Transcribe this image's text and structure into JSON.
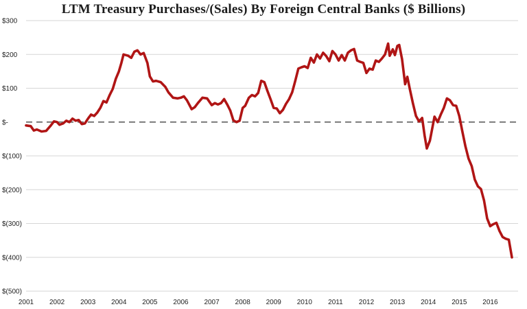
{
  "chart_data": {
    "type": "line",
    "title": "LTM Treasury Purchases/(Sales) By Foreign Central Banks ($ Billions)",
    "xlabel": "",
    "ylabel": "",
    "x_range": [
      2001,
      2016.9
    ],
    "ylim": [
      -500,
      300
    ],
    "y_ticks": [
      {
        "value": 300,
        "label": "$300"
      },
      {
        "value": 200,
        "label": "$200"
      },
      {
        "value": 100,
        "label": "$100"
      },
      {
        "value": 0,
        "label": "$-"
      },
      {
        "value": -100,
        "label": "$(100)"
      },
      {
        "value": -200,
        "label": "$(200)"
      },
      {
        "value": -300,
        "label": "$(300)"
      },
      {
        "value": -400,
        "label": "$(400)"
      },
      {
        "value": -500,
        "label": "$(500)"
      }
    ],
    "x_ticks": [
      {
        "value": 2001,
        "label": "2001"
      },
      {
        "value": 2002,
        "label": "2002"
      },
      {
        "value": 2003,
        "label": "2003"
      },
      {
        "value": 2004,
        "label": "2004"
      },
      {
        "value": 2005,
        "label": "2005"
      },
      {
        "value": 2006,
        "label": "2006"
      },
      {
        "value": 2007,
        "label": "2007"
      },
      {
        "value": 2008,
        "label": "2008"
      },
      {
        "value": 2009,
        "label": "2009"
      },
      {
        "value": 2010,
        "label": "2010"
      },
      {
        "value": 2011,
        "label": "2011"
      },
      {
        "value": 2012,
        "label": "2012"
      },
      {
        "value": 2013,
        "label": "2013"
      },
      {
        "value": 2014,
        "label": "2014"
      },
      {
        "value": 2015,
        "label": "2015"
      },
      {
        "value": 2016,
        "label": "2016"
      }
    ],
    "grid": true,
    "zero_line": "dashed",
    "series": [
      {
        "color": "#b01515",
        "points": [
          [
            2001.0,
            -10
          ],
          [
            2001.15,
            -12
          ],
          [
            2001.25,
            -25
          ],
          [
            2001.35,
            -22
          ],
          [
            2001.5,
            -28
          ],
          [
            2001.65,
            -26
          ],
          [
            2001.8,
            -10
          ],
          [
            2001.9,
            2
          ],
          [
            2002.0,
            0
          ],
          [
            2002.08,
            -8
          ],
          [
            2002.2,
            -4
          ],
          [
            2002.3,
            4
          ],
          [
            2002.4,
            0
          ],
          [
            2002.5,
            10
          ],
          [
            2002.6,
            4
          ],
          [
            2002.7,
            6
          ],
          [
            2002.8,
            -6
          ],
          [
            2002.9,
            -4
          ],
          [
            2003.0,
            10
          ],
          [
            2003.1,
            22
          ],
          [
            2003.2,
            18
          ],
          [
            2003.3,
            28
          ],
          [
            2003.4,
            42
          ],
          [
            2003.5,
            62
          ],
          [
            2003.6,
            58
          ],
          [
            2003.7,
            80
          ],
          [
            2003.8,
            98
          ],
          [
            2003.9,
            128
          ],
          [
            2004.0,
            150
          ],
          [
            2004.08,
            175
          ],
          [
            2004.15,
            200
          ],
          [
            2004.3,
            196
          ],
          [
            2004.4,
            190
          ],
          [
            2004.5,
            208
          ],
          [
            2004.6,
            212
          ],
          [
            2004.7,
            200
          ],
          [
            2004.8,
            204
          ],
          [
            2004.92,
            175
          ],
          [
            2005.0,
            135
          ],
          [
            2005.1,
            120
          ],
          [
            2005.2,
            122
          ],
          [
            2005.35,
            118
          ],
          [
            2005.5,
            104
          ],
          [
            2005.6,
            88
          ],
          [
            2005.75,
            72
          ],
          [
            2005.9,
            70
          ],
          [
            2006.0,
            72
          ],
          [
            2006.1,
            76
          ],
          [
            2006.2,
            64
          ],
          [
            2006.35,
            38
          ],
          [
            2006.45,
            44
          ],
          [
            2006.55,
            56
          ],
          [
            2006.7,
            72
          ],
          [
            2006.85,
            70
          ],
          [
            2007.0,
            50
          ],
          [
            2007.1,
            56
          ],
          [
            2007.2,
            52
          ],
          [
            2007.3,
            56
          ],
          [
            2007.4,
            68
          ],
          [
            2007.5,
            52
          ],
          [
            2007.6,
            34
          ],
          [
            2007.7,
            5
          ],
          [
            2007.8,
            0
          ],
          [
            2007.9,
            4
          ],
          [
            2008.0,
            42
          ],
          [
            2008.08,
            48
          ],
          [
            2008.2,
            72
          ],
          [
            2008.3,
            80
          ],
          [
            2008.4,
            76
          ],
          [
            2008.5,
            86
          ],
          [
            2008.6,
            122
          ],
          [
            2008.7,
            118
          ],
          [
            2008.8,
            92
          ],
          [
            2008.9,
            68
          ],
          [
            2009.0,
            42
          ],
          [
            2009.1,
            40
          ],
          [
            2009.2,
            26
          ],
          [
            2009.3,
            36
          ],
          [
            2009.4,
            54
          ],
          [
            2009.5,
            68
          ],
          [
            2009.6,
            88
          ],
          [
            2009.7,
            122
          ],
          [
            2009.8,
            158
          ],
          [
            2009.9,
            162
          ],
          [
            2010.0,
            165
          ],
          [
            2010.1,
            160
          ],
          [
            2010.2,
            190
          ],
          [
            2010.3,
            176
          ],
          [
            2010.4,
            200
          ],
          [
            2010.5,
            188
          ],
          [
            2010.6,
            205
          ],
          [
            2010.7,
            195
          ],
          [
            2010.8,
            180
          ],
          [
            2010.9,
            210
          ],
          [
            2011.0,
            200
          ],
          [
            2011.1,
            182
          ],
          [
            2011.2,
            198
          ],
          [
            2011.3,
            182
          ],
          [
            2011.4,
            205
          ],
          [
            2011.5,
            212
          ],
          [
            2011.6,
            216
          ],
          [
            2011.7,
            182
          ],
          [
            2011.8,
            178
          ],
          [
            2011.9,
            175
          ],
          [
            2012.0,
            145
          ],
          [
            2012.1,
            158
          ],
          [
            2012.2,
            155
          ],
          [
            2012.3,
            182
          ],
          [
            2012.4,
            178
          ],
          [
            2012.5,
            188
          ],
          [
            2012.6,
            200
          ],
          [
            2012.7,
            232
          ],
          [
            2012.75,
            196
          ],
          [
            2012.85,
            215
          ],
          [
            2012.92,
            198
          ],
          [
            2013.0,
            225
          ],
          [
            2013.06,
            228
          ],
          [
            2013.15,
            186
          ],
          [
            2013.25,
            112
          ],
          [
            2013.32,
            134
          ],
          [
            2013.4,
            98
          ],
          [
            2013.5,
            56
          ],
          [
            2013.6,
            18
          ],
          [
            2013.7,
            2
          ],
          [
            2013.8,
            12
          ],
          [
            2013.88,
            -40
          ],
          [
            2013.95,
            -78
          ],
          [
            2014.05,
            -55
          ],
          [
            2014.2,
            16
          ],
          [
            2014.3,
            0
          ],
          [
            2014.4,
            22
          ],
          [
            2014.5,
            42
          ],
          [
            2014.6,
            70
          ],
          [
            2014.7,
            64
          ],
          [
            2014.8,
            50
          ],
          [
            2014.9,
            48
          ],
          [
            2015.0,
            18
          ],
          [
            2015.1,
            -28
          ],
          [
            2015.2,
            -72
          ],
          [
            2015.3,
            -108
          ],
          [
            2015.4,
            -130
          ],
          [
            2015.5,
            -170
          ],
          [
            2015.6,
            -190
          ],
          [
            2015.7,
            -198
          ],
          [
            2015.8,
            -232
          ],
          [
            2015.9,
            -285
          ],
          [
            2016.0,
            -308
          ],
          [
            2016.1,
            -302
          ],
          [
            2016.2,
            -298
          ],
          [
            2016.3,
            -322
          ],
          [
            2016.4,
            -340
          ],
          [
            2016.5,
            -345
          ],
          [
            2016.6,
            -348
          ],
          [
            2016.7,
            -400
          ]
        ]
      }
    ]
  }
}
